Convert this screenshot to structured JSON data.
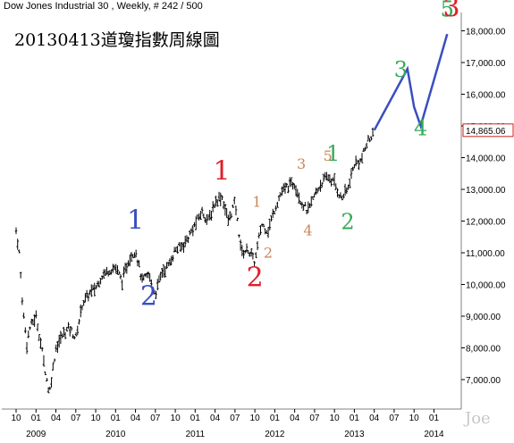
{
  "header": {
    "instrument": "Dow Jones Industrial 30 , Weekly, # 242 / 500"
  },
  "chart_title": "20130413道瓊指數周線圖",
  "signature": "Joe",
  "colors": {
    "price_bar": "#000000",
    "projection": "#3a4ec0",
    "wave_blue": "#3a4ec0",
    "wave_red": "#e0202a",
    "wave_green": "#33aa55",
    "wave_tan": "#c9865a",
    "last_price_box": "#cc2222",
    "background": "#ffffff",
    "axis": "#808080"
  },
  "chart_data": {
    "type": "ohlc",
    "frequency": "weekly",
    "ylim": [
      6200,
      19200
    ],
    "y_ticks": [
      7000,
      8000,
      9000,
      10000,
      11000,
      12000,
      13000,
      14000,
      15000,
      16000,
      17000,
      18000
    ],
    "y_tick_labels": [
      "7,000.00",
      "8,000.00",
      "9,000.00",
      "10,000.00",
      "11,000.00",
      "12,000.00",
      "13,000.00",
      "14,000.00",
      "15,000.00",
      "16,000.00",
      "17,000.00",
      "18,000.00"
    ],
    "x_months": [
      "2008-10",
      "2009-01",
      "2009-04",
      "2009-07",
      "2009-10",
      "2010-01",
      "2010-04",
      "2010-07",
      "2010-10",
      "2011-01",
      "2011-04",
      "2011-07",
      "2011-10",
      "2012-01",
      "2012-04",
      "2012-07",
      "2012-10",
      "2013-01",
      "2013-04",
      "2013-07",
      "2013-10",
      "2014-01"
    ],
    "x_month_labels": [
      "10",
      "01",
      "04",
      "07",
      "10",
      "01",
      "04",
      "07",
      "10",
      "01",
      "04",
      "07",
      "10",
      "01",
      "04",
      "07",
      "10",
      "01",
      "04",
      "07",
      "10",
      "01"
    ],
    "x_years": [
      "2009-01",
      "2010-01",
      "2011-01",
      "2012-01",
      "2013-01",
      "2014-01"
    ],
    "x_year_labels": [
      "2009",
      "2010",
      "2011",
      "2012",
      "2013",
      "2014"
    ],
    "last_price": 14865.06,
    "last_price_label": "14,865.06",
    "price_path": [
      [
        "2008-10",
        11700
      ],
      [
        "2008-10-15",
        11000
      ],
      [
        "2008-11",
        9300
      ],
      [
        "2008-11-20",
        8100
      ],
      [
        "2008-12",
        8600
      ],
      [
        "2009-01",
        9000
      ],
      [
        "2009-02",
        7800
      ],
      [
        "2009-03",
        6550
      ],
      [
        "2009-04",
        8000
      ],
      [
        "2009-05",
        8400
      ],
      [
        "2009-06",
        8650
      ],
      [
        "2009-07",
        8300
      ],
      [
        "2009-08",
        9400
      ],
      [
        "2009-09",
        9700
      ],
      [
        "2009-10",
        9900
      ],
      [
        "2009-11",
        10300
      ],
      [
        "2009-12",
        10450
      ],
      [
        "2010-01",
        10550
      ],
      [
        "2010-02",
        10100
      ],
      [
        "2010-03",
        10800
      ],
      [
        "2010-04",
        11100
      ],
      [
        "2010-05",
        10100
      ],
      [
        "2010-06",
        10300
      ],
      [
        "2010-07",
        9700
      ],
      [
        "2010-08",
        10400
      ],
      [
        "2010-09",
        10600
      ],
      [
        "2010-10",
        11100
      ],
      [
        "2010-11",
        11200
      ],
      [
        "2010-12",
        11500
      ],
      [
        "2011-01",
        11900
      ],
      [
        "2011-02",
        12300
      ],
      [
        "2011-03",
        12000
      ],
      [
        "2011-04",
        12600
      ],
      [
        "2011-05",
        12800
      ],
      [
        "2011-06",
        12000
      ],
      [
        "2011-07",
        12600
      ],
      [
        "2011-08",
        11000
      ],
      [
        "2011-09",
        11100
      ],
      [
        "2011-10",
        10700
      ],
      [
        "2011-11",
        11900
      ],
      [
        "2011-12",
        11700
      ],
      [
        "2012-01",
        12400
      ],
      [
        "2012-02",
        12900
      ],
      [
        "2012-03",
        13100
      ],
      [
        "2012-04",
        13200
      ],
      [
        "2012-05",
        12600
      ],
      [
        "2012-06",
        12300
      ],
      [
        "2012-07",
        12800
      ],
      [
        "2012-08",
        13200
      ],
      [
        "2012-09",
        13400
      ],
      [
        "2012-10",
        13200
      ],
      [
        "2012-11",
        12700
      ],
      [
        "2012-12",
        13000
      ],
      [
        "2013-01",
        13800
      ],
      [
        "2013-02",
        13900
      ],
      [
        "2013-03",
        14500
      ],
      [
        "2013-04",
        14865
      ]
    ],
    "projection_path": [
      [
        "2013-04",
        14865
      ],
      [
        "2013-09",
        16800
      ],
      [
        "2013-10",
        15600
      ],
      [
        "2013-11",
        15000
      ],
      [
        "2014-03",
        17900
      ]
    ],
    "wave_labels": [
      {
        "text": "1",
        "x": "2010-04",
        "y": 11750,
        "color": "blue"
      },
      {
        "text": "2",
        "x": "2010-06",
        "y": 9350,
        "color": "blue"
      },
      {
        "text": "1",
        "x": "2011-05",
        "y": 13300,
        "color": "red"
      },
      {
        "text": "2",
        "x": "2011-10",
        "y": 9950,
        "color": "red"
      },
      {
        "text": "1",
        "x": "2011-10-10",
        "y": 12450,
        "color": "tan"
      },
      {
        "text": "2",
        "x": "2011-12",
        "y": 10850,
        "color": "tan"
      },
      {
        "text": "3",
        "x": "2012-05",
        "y": 13650,
        "color": "tan"
      },
      {
        "text": "4",
        "x": "2012-06",
        "y": 11550,
        "color": "tan"
      },
      {
        "text": "5",
        "x": "2012-09",
        "y": 13900,
        "color": "tan"
      },
      {
        "text": "1",
        "x": "2012-09-25",
        "y": 13900,
        "color": "green"
      },
      {
        "text": "2",
        "x": "2012-12",
        "y": 11750,
        "color": "green"
      },
      {
        "text": "3",
        "x": "2013-08",
        "y": 16550,
        "color": "green"
      },
      {
        "text": "4",
        "x": "2013-11",
        "y": 14700,
        "color": "green"
      },
      {
        "text": "5",
        "x": "2014-03",
        "y": 18450,
        "color": "green"
      },
      {
        "text": "3",
        "x": "2014-03-20",
        "y": 18450,
        "color": "red"
      }
    ]
  }
}
